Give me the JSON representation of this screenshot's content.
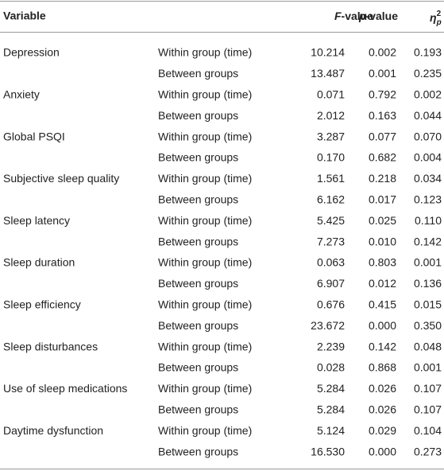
{
  "table": {
    "header": {
      "variable": "Variable",
      "f": {
        "italic": "F",
        "text": "-value"
      },
      "p": {
        "italic": "p",
        "text": "-value"
      },
      "eta": {
        "symbol": "η",
        "sub": "p",
        "sup": "2"
      }
    },
    "groups": [
      {
        "variable": "Depression",
        "rows": [
          [
            "Within group (time)",
            "10.214",
            "0.002",
            "0.193"
          ],
          [
            "Between groups",
            "13.487",
            "0.001",
            "0.235"
          ]
        ]
      },
      {
        "variable": "Anxiety",
        "rows": [
          [
            "Within group (time)",
            "0.071",
            "0.792",
            "0.002"
          ],
          [
            "Between groups",
            "2.012",
            "0.163",
            "0.044"
          ]
        ]
      },
      {
        "variable": "Global PSQI",
        "rows": [
          [
            "Within group (time)",
            "3.287",
            "0.077",
            "0.070"
          ],
          [
            "Between groups",
            "0.170",
            "0.682",
            "0.004"
          ]
        ]
      },
      {
        "variable": "Subjective sleep quality",
        "rows": [
          [
            "Within group (time)",
            "1.561",
            "0.218",
            "0.034"
          ],
          [
            "Between groups",
            "6.162",
            "0.017",
            "0.123"
          ]
        ]
      },
      {
        "variable": "Sleep latency",
        "rows": [
          [
            "Within group (time)",
            "5.425",
            "0.025",
            "0.110"
          ],
          [
            "Between groups",
            "7.273",
            "0.010",
            "0.142"
          ]
        ]
      },
      {
        "variable": "Sleep duration",
        "rows": [
          [
            "Within group (time)",
            "0.063",
            "0.803",
            "0.001"
          ],
          [
            "Between groups",
            "6.907",
            "0.012",
            "0.136"
          ]
        ]
      },
      {
        "variable": "Sleep efficiency",
        "rows": [
          [
            "Within group (time)",
            "0.676",
            "0.415",
            "0.015"
          ],
          [
            "Between groups",
            "23.672",
            "0.000",
            "0.350"
          ]
        ]
      },
      {
        "variable": "Sleep disturbances",
        "rows": [
          [
            "Within group (time)",
            "2.239",
            "0.142",
            "0.048"
          ],
          [
            "Between groups",
            "0.028",
            "0.868",
            "0.001"
          ]
        ]
      },
      {
        "variable": "Use of sleep medications",
        "rows": [
          [
            "Within group (time)",
            "5.284",
            "0.026",
            "0.107"
          ],
          [
            "Between groups",
            "5.284",
            "0.026",
            "0.107"
          ]
        ]
      },
      {
        "variable": "Daytime dysfunction",
        "rows": [
          [
            "Within group (time)",
            "5.124",
            "0.029",
            "0.104"
          ],
          [
            "Between groups",
            "16.530",
            "0.000",
            "0.273"
          ]
        ]
      }
    ]
  }
}
